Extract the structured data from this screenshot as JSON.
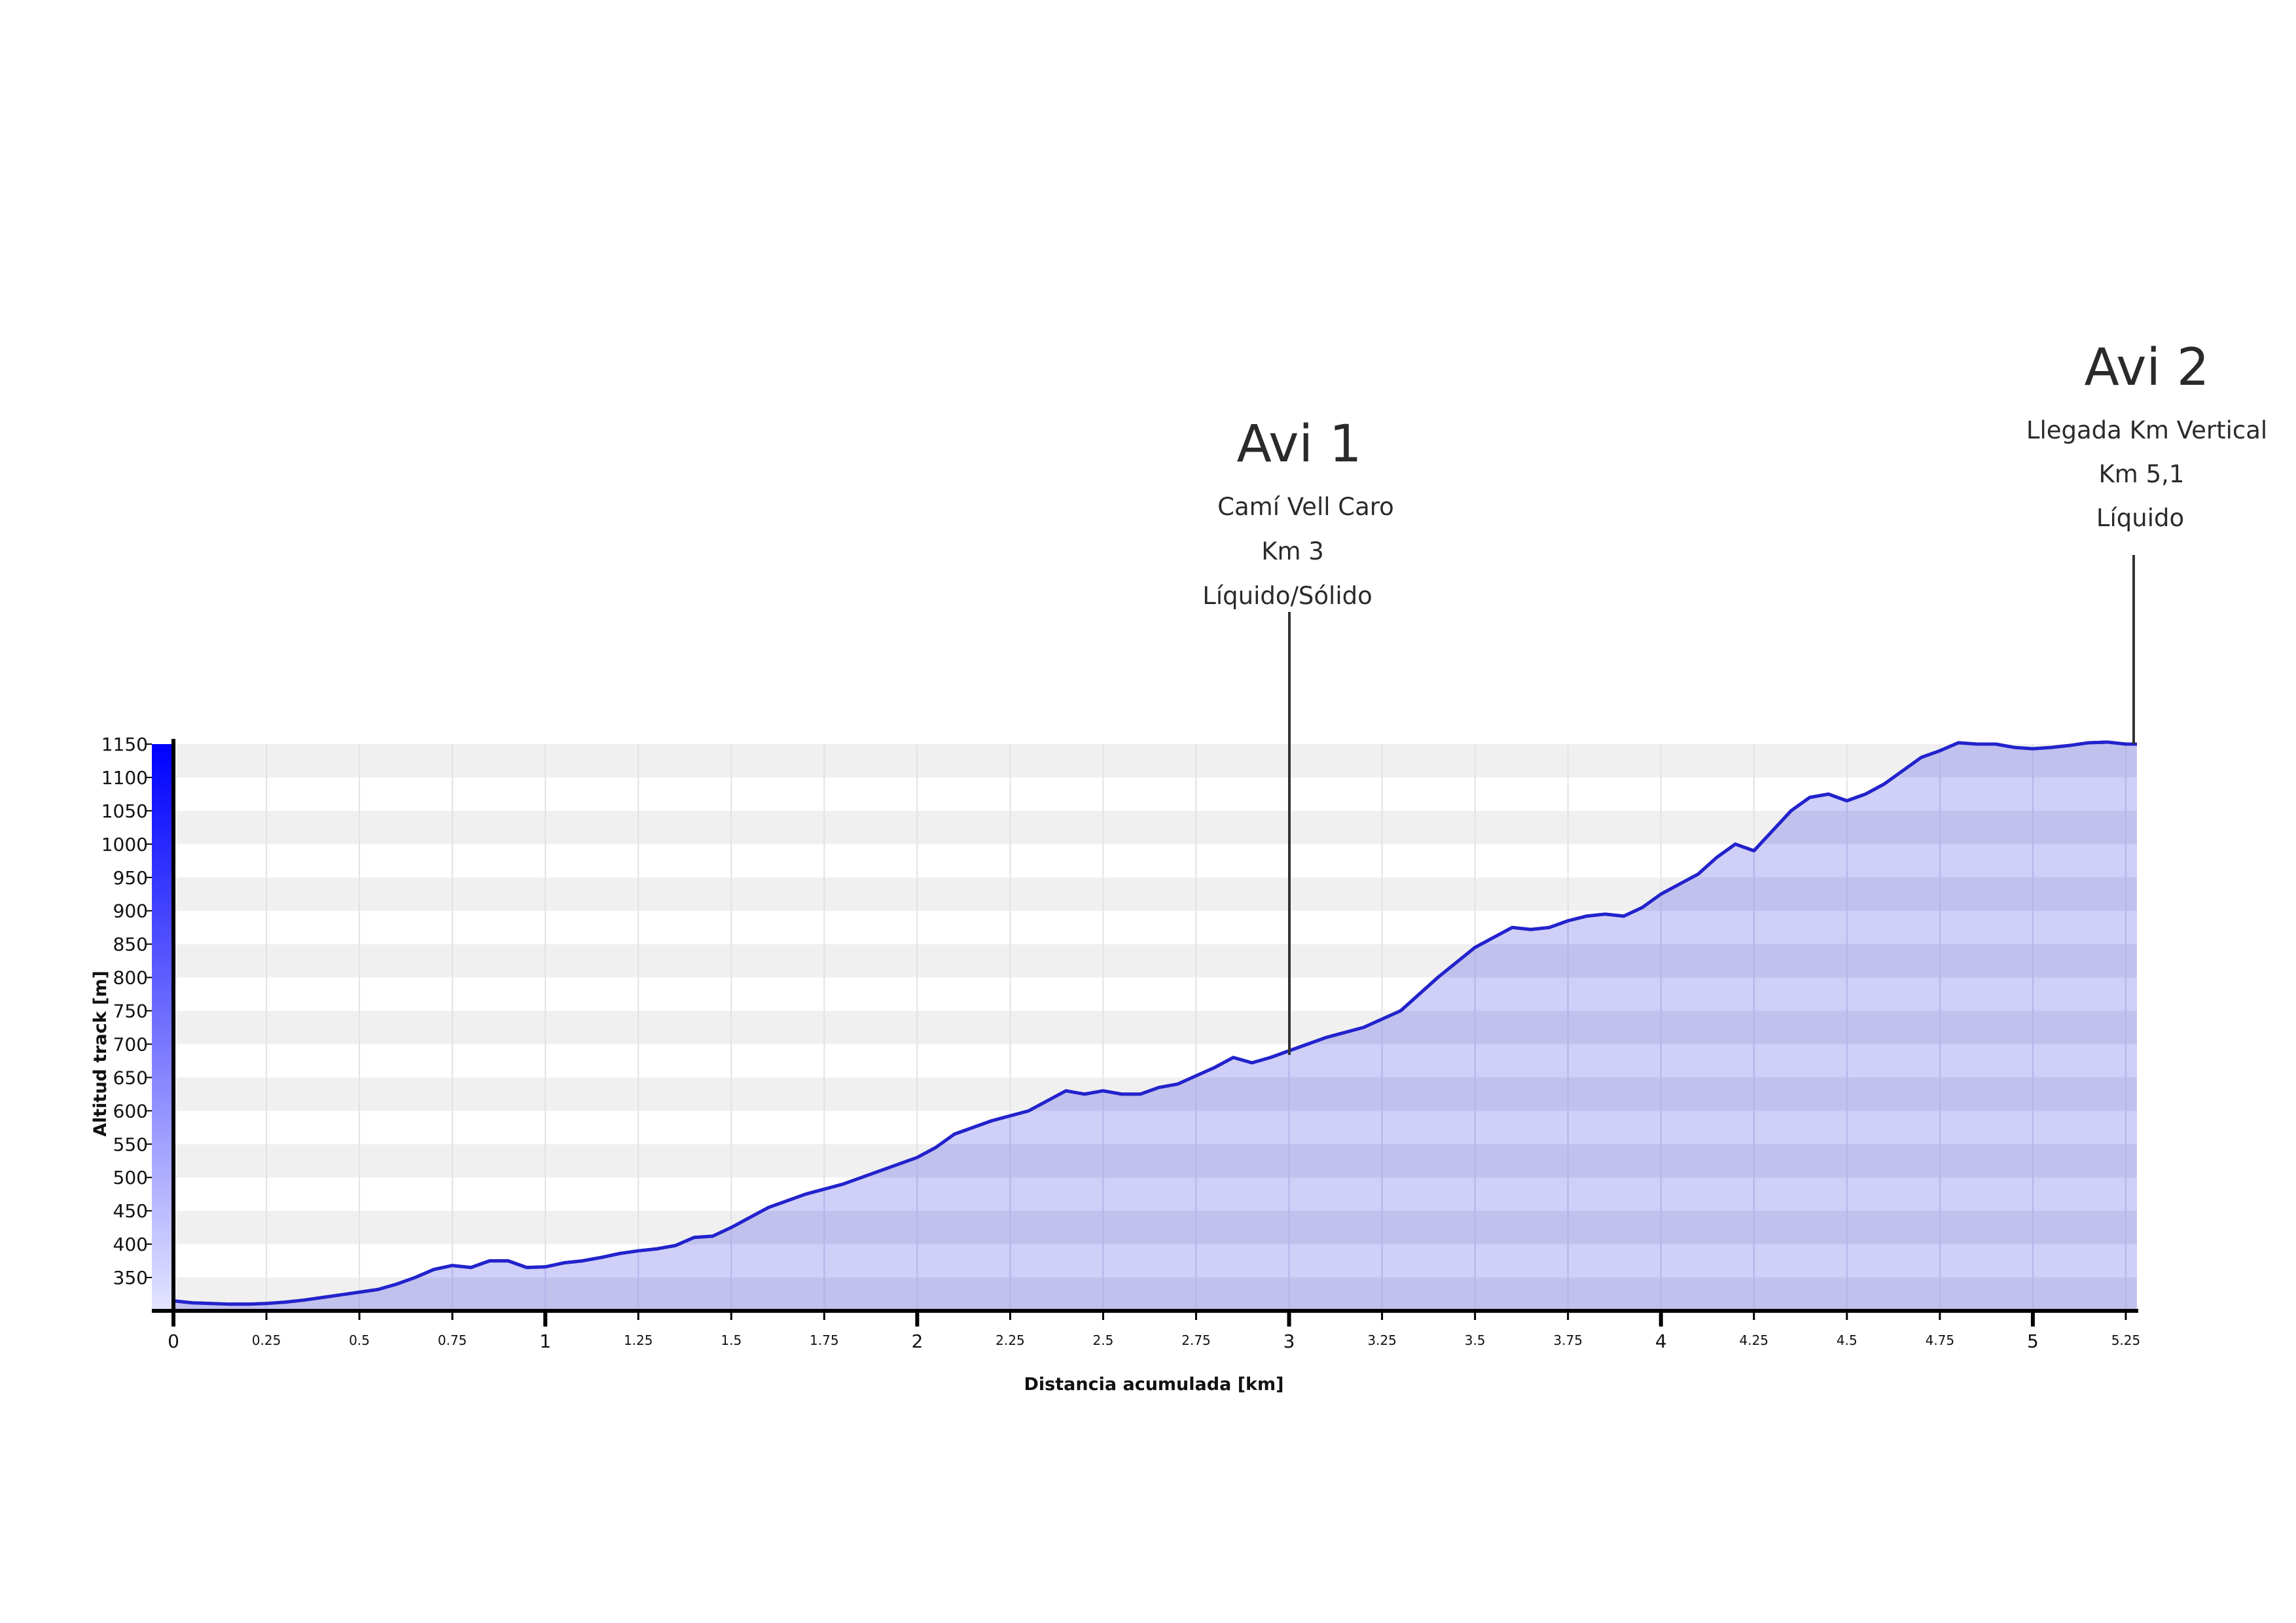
{
  "chart_data": {
    "type": "area",
    "xlabel": "Distancia acumulada [km]",
    "ylabel": "Altitud track [m]",
    "xlim": [
      0,
      5.28
    ],
    "ylim": [
      300,
      1150
    ],
    "x_ticks_major": [
      "0",
      "1",
      "2",
      "3",
      "4",
      "5"
    ],
    "x_ticks_minor": [
      "0.25",
      "0.5",
      "0.75",
      "1.25",
      "1.5",
      "1.75",
      "2.25",
      "2.5",
      "2.75",
      "3.25",
      "3.5",
      "3.75",
      "4.25",
      "4.5",
      "4.75",
      "5.25"
    ],
    "y_ticks": [
      "1150",
      "1100",
      "1050",
      "1000",
      "950",
      "900",
      "850",
      "800",
      "750",
      "700",
      "650",
      "600",
      "550",
      "500",
      "450",
      "400",
      "350"
    ],
    "colors": {
      "line": "#2222cc",
      "fill": "#cfcff8",
      "axis_gradient_top": "#0000ff",
      "axis_gradient_bottom": "#ddddff",
      "band": "#f0f0f0"
    },
    "series": [
      {
        "x": [
          0,
          0.05,
          0.1,
          0.15,
          0.2,
          0.25,
          0.3,
          0.35,
          0.4,
          0.45,
          0.5,
          0.55,
          0.6,
          0.65,
          0.7,
          0.75,
          0.8,
          0.85,
          0.9,
          0.95,
          1.0,
          1.05,
          1.1,
          1.15,
          1.2,
          1.25,
          1.3,
          1.35,
          1.4,
          1.45,
          1.5,
          1.6,
          1.7,
          1.8,
          1.9,
          2.0,
          2.05,
          2.1,
          2.2,
          2.3,
          2.4,
          2.45,
          2.5,
          2.55,
          2.6,
          2.65,
          2.7,
          2.8,
          2.85,
          2.9,
          2.95,
          3.0,
          3.1,
          3.2,
          3.3,
          3.4,
          3.5,
          3.55,
          3.6,
          3.65,
          3.7,
          3.75,
          3.8,
          3.85,
          3.9,
          3.95,
          4.0,
          4.05,
          4.1,
          4.15,
          4.2,
          4.25,
          4.3,
          4.35,
          4.4,
          4.45,
          4.5,
          4.55,
          4.6,
          4.65,
          4.7,
          4.75,
          4.8,
          4.85,
          4.9,
          4.95,
          5.0,
          5.05,
          5.1,
          5.15,
          5.2,
          5.25,
          5.28
        ],
        "y": [
          315,
          312,
          311,
          310,
          310,
          311,
          313,
          316,
          320,
          324,
          328,
          332,
          340,
          350,
          362,
          368,
          365,
          375,
          375,
          365,
          366,
          372,
          375,
          380,
          386,
          390,
          393,
          398,
          410,
          412,
          425,
          455,
          475,
          490,
          510,
          530,
          545,
          565,
          585,
          600,
          630,
          625,
          630,
          625,
          625,
          635,
          640,
          665,
          680,
          672,
          680,
          690,
          710,
          725,
          750,
          800,
          845,
          860,
          875,
          872,
          875,
          885,
          892,
          895,
          892,
          905,
          925,
          940,
          955,
          980,
          1000,
          990,
          1020,
          1050,
          1070,
          1075,
          1065,
          1075,
          1090,
          1110,
          1130,
          1140,
          1152,
          1150,
          1150,
          1145,
          1143,
          1145,
          1148,
          1152,
          1153,
          1150,
          1150
        ]
      }
    ],
    "annotations": [
      {
        "title": "Avi 1",
        "lines": [
          "Camí Vell Caro",
          "Km 3",
          "Líquido/Sólido"
        ],
        "x": 3.0,
        "y": 690
      },
      {
        "title": "Avi 2",
        "lines": [
          "Llegada Km Vertical",
          "Km 5,1",
          "Líquido"
        ],
        "x": 5.26,
        "y": 1150
      }
    ]
  }
}
